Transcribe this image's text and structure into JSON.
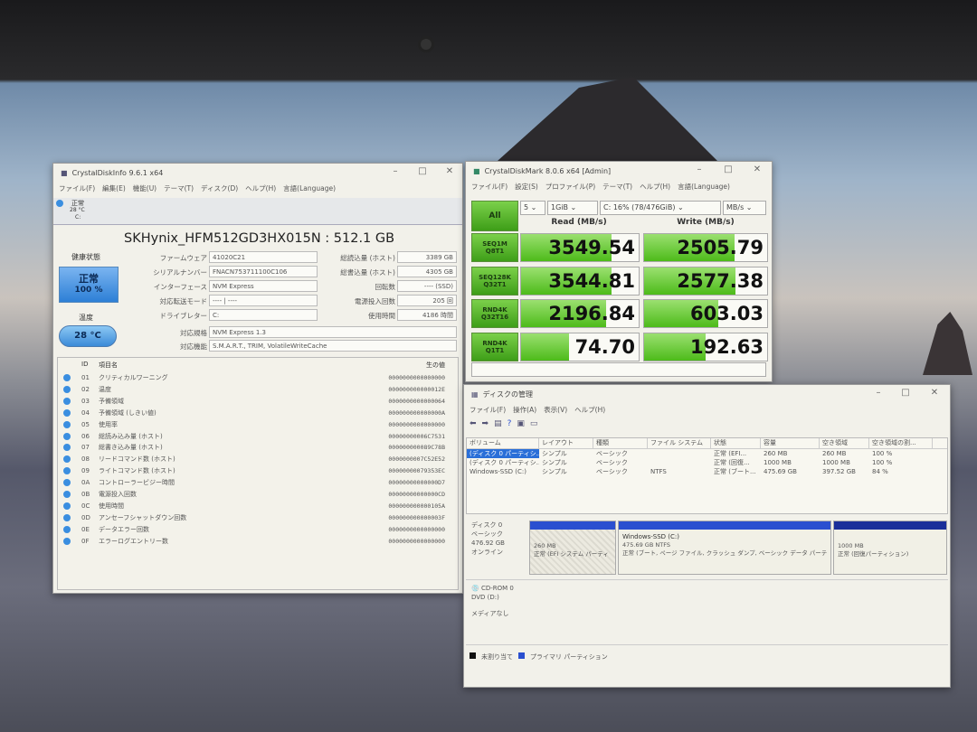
{
  "cdi": {
    "title": "CrystalDiskInfo 9.6.1 x64",
    "menu": [
      "ファイル(F)",
      "編集(E)",
      "機能(U)",
      "テーマ(T)",
      "ディスク(D)",
      "ヘルプ(H)",
      "言語(Language)"
    ],
    "tray": {
      "status": "正常",
      "temp": "28 °C",
      "drive": "C:"
    },
    "model": "SKHynix_HFM512GD3HX015N : 512.1 GB",
    "health_label": "健康状態",
    "health_status": "正常",
    "health_percent": "100 %",
    "temp_label": "温度",
    "temp_value": "28 °C",
    "left_fields": [
      {
        "label": "ファームウェア",
        "value": "41020C21"
      },
      {
        "label": "シリアルナンバー",
        "value": "FNACN753711100C106"
      },
      {
        "label": "インターフェース",
        "value": "NVM Express"
      },
      {
        "label": "対応転送モード",
        "value": "---- | ----"
      },
      {
        "label": "ドライブレター",
        "value": "C:"
      }
    ],
    "right_fields": [
      {
        "label": "総読込量 (ホスト)",
        "value": "3389 GB"
      },
      {
        "label": "総書込量 (ホスト)",
        "value": "4305 GB"
      },
      {
        "label": "回転数",
        "value": "---- (SSD)"
      },
      {
        "label": "電源投入回数",
        "value": "205 回"
      },
      {
        "label": "使用時間",
        "value": "4186 時間"
      }
    ],
    "standard_label": "対応規格",
    "standard": "NVM Express 1.3",
    "features_label": "対応機能",
    "features": "S.M.A.R.T., TRIM, VolatileWriteCache",
    "smart_headers": {
      "id": "ID",
      "name": "項目名",
      "raw": "生の値"
    },
    "smart": [
      {
        "id": "01",
        "name": "クリティカルワーニング",
        "raw": "0000000000000000"
      },
      {
        "id": "02",
        "name": "温度",
        "raw": "000000000000012E"
      },
      {
        "id": "03",
        "name": "予備領域",
        "raw": "0000000000000064"
      },
      {
        "id": "04",
        "name": "予備領域 (しきい値)",
        "raw": "000000000000000A"
      },
      {
        "id": "05",
        "name": "使用率",
        "raw": "0000000000000000"
      },
      {
        "id": "06",
        "name": "総読み込み量 (ホスト)",
        "raw": "00000000006C7531"
      },
      {
        "id": "07",
        "name": "総書き込み量 (ホスト)",
        "raw": "000000000089C78B"
      },
      {
        "id": "08",
        "name": "リードコマンド数 (ホスト)",
        "raw": "0000000007C52E52"
      },
      {
        "id": "09",
        "name": "ライトコマンド数 (ホスト)",
        "raw": "00000000079353EC"
      },
      {
        "id": "0A",
        "name": "コントローラービジー時間",
        "raw": "00000000000000D7"
      },
      {
        "id": "0B",
        "name": "電源投入回数",
        "raw": "00000000000000CD"
      },
      {
        "id": "0C",
        "name": "使用時間",
        "raw": "000000000000105A"
      },
      {
        "id": "0D",
        "name": "アンセーフシャットダウン回数",
        "raw": "000000000000003F"
      },
      {
        "id": "0E",
        "name": "データエラー回数",
        "raw": "0000000000000000"
      },
      {
        "id": "0F",
        "name": "エラーログエントリー数",
        "raw": "0000000000000000"
      }
    ]
  },
  "cdm": {
    "title": "CrystalDiskMark 8.0.6 x64 [Admin]",
    "menu": [
      "ファイル(F)",
      "設定(S)",
      "プロファイル(P)",
      "テーマ(T)",
      "ヘルプ(H)",
      "言語(Language)"
    ],
    "all_label": "All",
    "count": "5",
    "size": "1GiB",
    "drive": "C: 16% (78/476GiB)",
    "unit": "MB/s",
    "read_header": "Read (MB/s)",
    "write_header": "Write (MB/s)",
    "tests": [
      {
        "line1": "SEQ1M",
        "line2": "Q8T1",
        "read": "3549.54",
        "write": "2505.79"
      },
      {
        "line1": "SEQ128K",
        "line2": "Q32T1",
        "read": "3544.81",
        "write": "2577.38"
      },
      {
        "line1": "RND4K",
        "line2": "Q32T16",
        "read": "2196.84",
        "write": "603.03"
      },
      {
        "line1": "RND4K",
        "line2": "Q1T1",
        "read": "74.70",
        "write": "192.63"
      }
    ],
    "accent": "#4dbb1a"
  },
  "dm": {
    "title": "ディスクの管理",
    "menu": [
      "ファイル(F)",
      "操作(A)",
      "表示(V)",
      "ヘルプ(H)"
    ],
    "headers": [
      "ボリューム",
      "レイアウト",
      "種類",
      "ファイル システム",
      "状態",
      "容量",
      "空き領域",
      "空き領域の割..."
    ],
    "rows": [
      [
        "(ディスク 0 パーティシ...",
        "シンプル",
        "ベーシック",
        "",
        "正常 (EFI...",
        "260 MB",
        "260 MB",
        "100 %"
      ],
      [
        "(ディスク 0 パーティシ...",
        "シンプル",
        "ベーシック",
        "",
        "正常 (回復...",
        "1000 MB",
        "1000 MB",
        "100 %"
      ],
      [
        "Windows-SSD (C:)",
        "シンプル",
        "ベーシック",
        "NTFS",
        "正常 (ブート...",
        "475.69 GB",
        "397.52 GB",
        "84 %"
      ]
    ],
    "disk0": {
      "name": "ディスク 0",
      "type": "ベーシック",
      "size": "476.92 GB",
      "status": "オンライン",
      "parts": [
        {
          "title": "",
          "size": "260 MB",
          "status": "正常 (EFI システム パーティ"
        },
        {
          "title": "Windows-SSD  (C:)",
          "size": "475.69 GB NTFS",
          "status": "正常 (ブート, ページ ファイル, クラッシュ ダンプ, ベーシック データ パーテ"
        },
        {
          "title": "",
          "size": "1000 MB",
          "status": "正常 (回復パーティション)"
        }
      ]
    },
    "cdrom": {
      "name": "CD-ROM 0",
      "type": "DVD (D:)",
      "status": "メディアなし"
    },
    "legend": [
      {
        "label": "未割り当て",
        "color": "#111111"
      },
      {
        "label": "プライマリ パーティション",
        "color": "#2a4fd0"
      }
    ]
  }
}
